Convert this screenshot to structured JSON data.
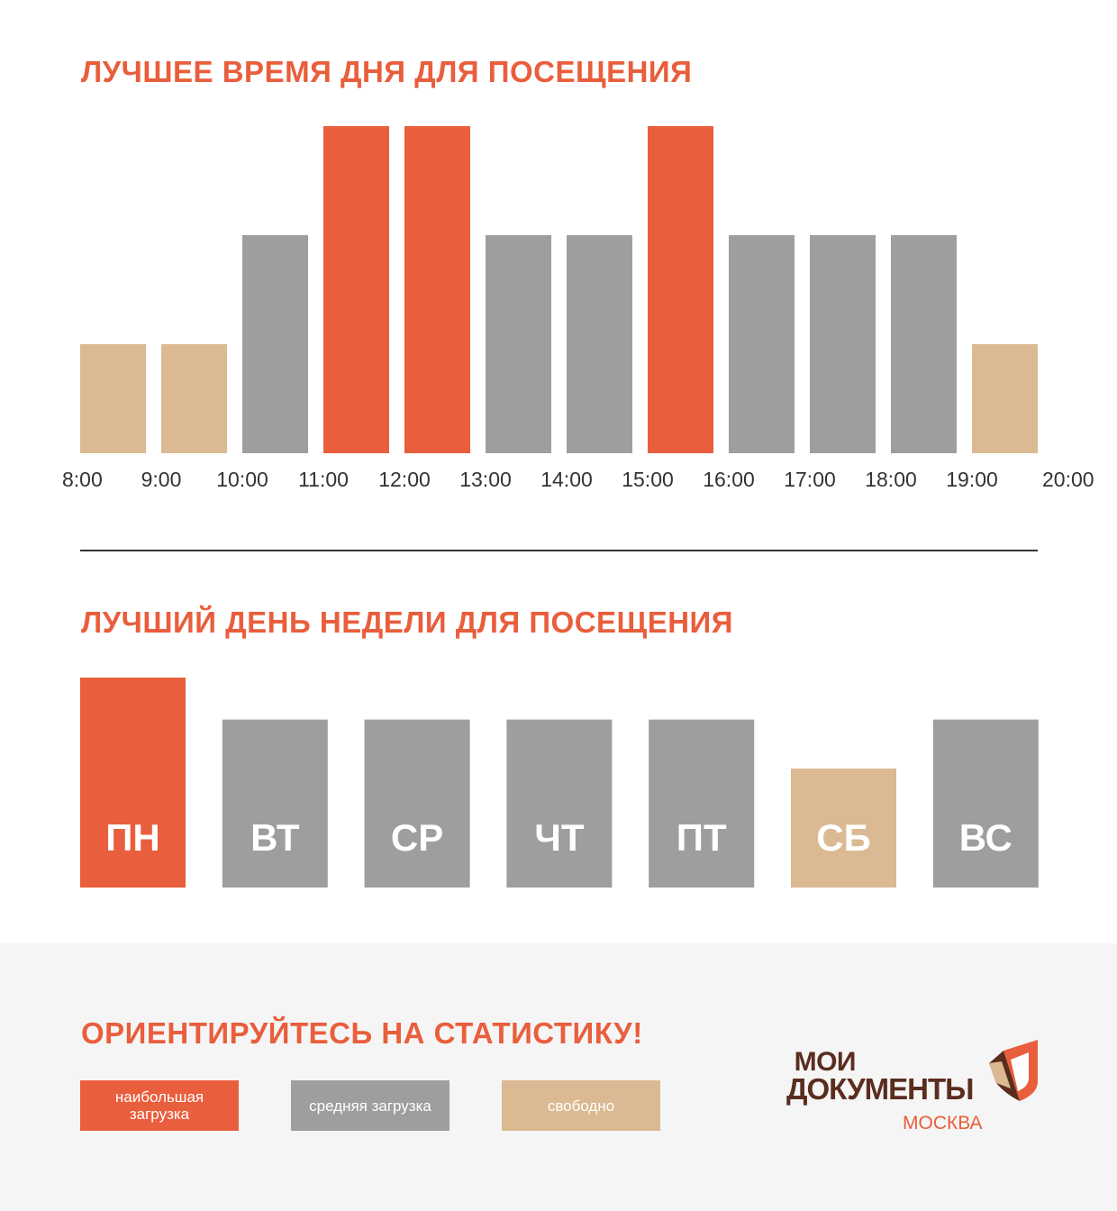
{
  "titles": {
    "hours": "ЛУЧШЕЕ ВРЕМЯ ДНЯ ДЛЯ ПОСЕЩЕНИЯ",
    "days": "ЛУЧШИЙ ДЕНЬ НЕДЕЛИ ДЛЯ ПОСЕЩЕНИЯ",
    "footer": "ОРИЕНТИРУЙТЕСЬ НА СТАТИСТИКУ!"
  },
  "colors": {
    "high": "#e95e3c",
    "medium": "#9e9e9e",
    "free": "#dbb992",
    "day_label": "#ffffff",
    "tick_label": "#333333"
  },
  "chart_data": [
    {
      "type": "bar",
      "x_ticks": [
        "8:00",
        "9:00",
        "10:00",
        "11:00",
        "12:00",
        "13:00",
        "14:00",
        "15:00",
        "16:00",
        "17:00",
        "18:00",
        "19:00",
        "20:00"
      ],
      "values": [
        1,
        1,
        2,
        3,
        3,
        2,
        2,
        3,
        2,
        2,
        2,
        1
      ],
      "levels": [
        "free",
        "free",
        "medium",
        "high",
        "high",
        "medium",
        "medium",
        "high",
        "medium",
        "medium",
        "medium",
        "free"
      ],
      "ylim": [
        0,
        3
      ],
      "grid": false
    },
    {
      "type": "bar",
      "categories": [
        "ПН",
        "ВТ",
        "СР",
        "ЧТ",
        "ПТ",
        "СБ",
        "ВС"
      ],
      "values": [
        3,
        2.4,
        2.4,
        2.4,
        2.4,
        1.7,
        2.4
      ],
      "levels": [
        "high",
        "medium",
        "medium",
        "medium",
        "medium",
        "free",
        "medium"
      ],
      "ylim": [
        0,
        3
      ],
      "grid": false
    }
  ],
  "legend": [
    {
      "level": "high",
      "label": "наибольшая загрузка"
    },
    {
      "level": "medium",
      "label": "средняя загрузка"
    },
    {
      "level": "free",
      "label": "свободно"
    }
  ],
  "logo": {
    "line1": "МОИ",
    "line2": "ДОКУМЕНТЫ",
    "city": "МОСКВА",
    "mark_colors": [
      "#e95e3c",
      "#5a2d1e",
      "#dbb992"
    ]
  }
}
